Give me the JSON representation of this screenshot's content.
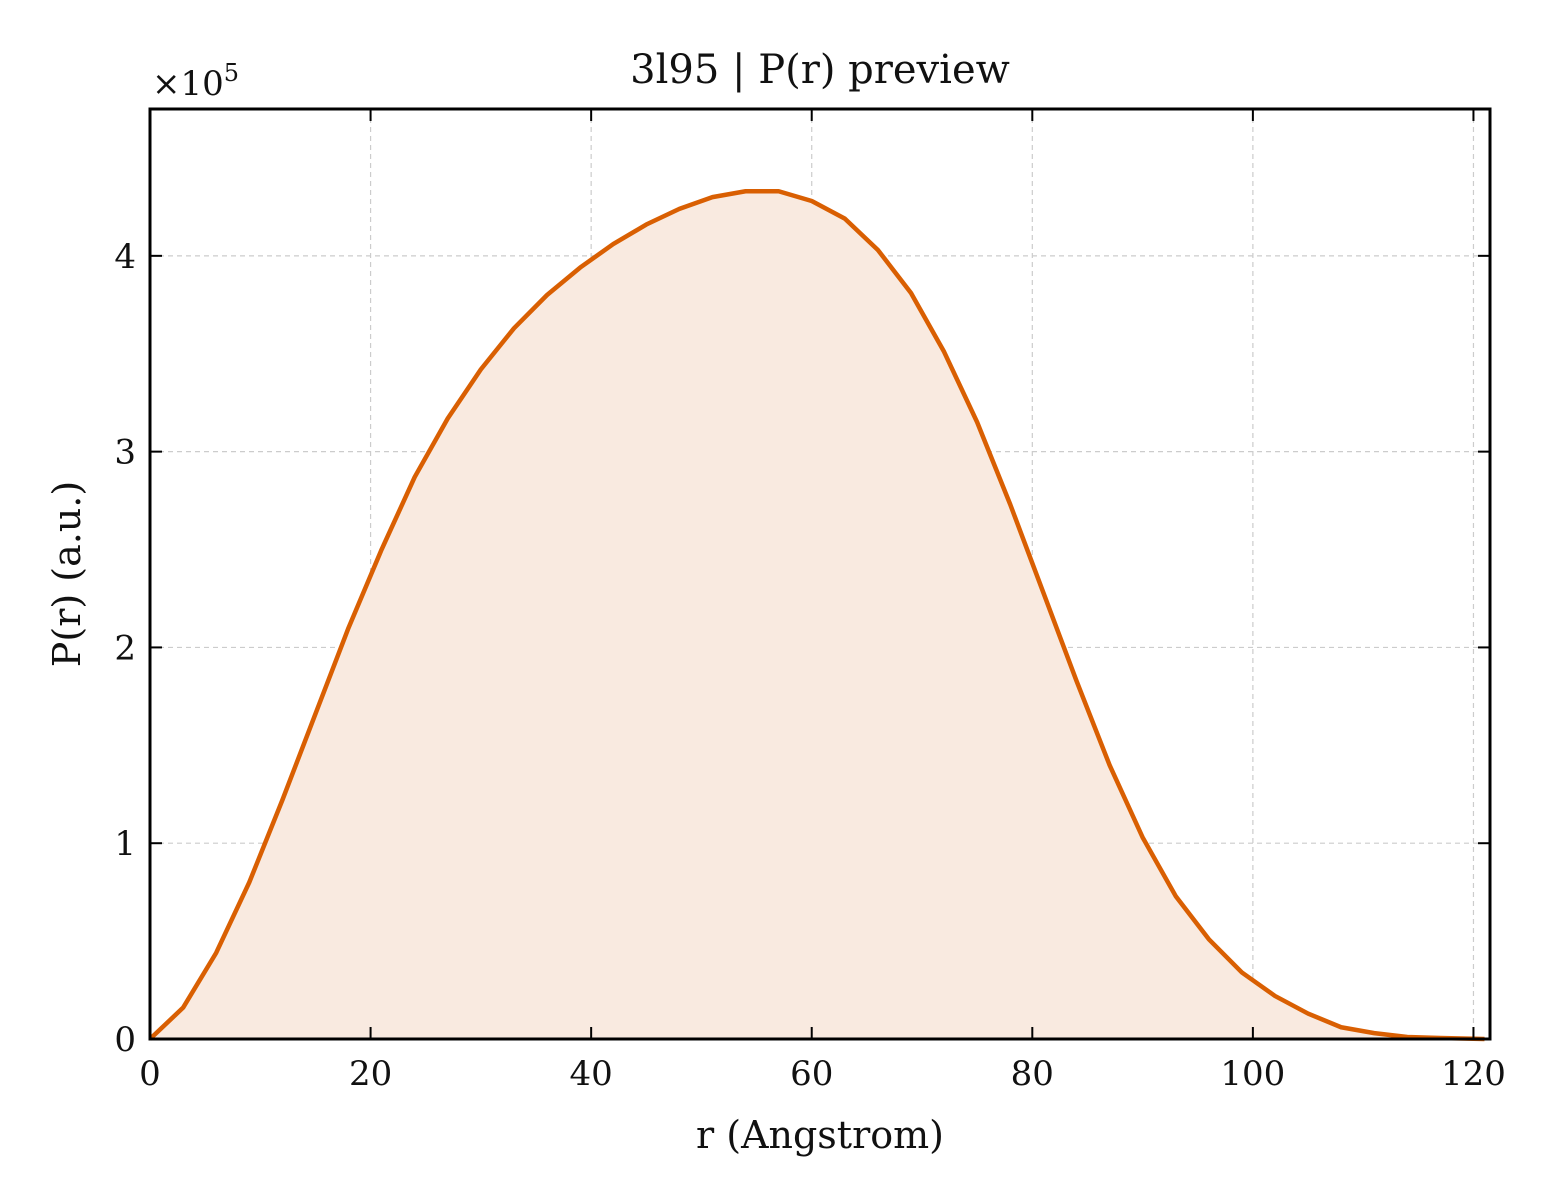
{
  "chart_data": {
    "type": "line",
    "title": "3l95 | P(r) preview",
    "xlabel": "r (Angstrom)",
    "ylabel": "P(r) (a.u.)",
    "y_multiplier": "×10",
    "y_multiplier_exp": "5",
    "xlim": [
      0,
      121.5
    ],
    "ylim": [
      0,
      4.75
    ],
    "xticks": [
      0,
      20,
      40,
      60,
      80,
      100,
      120
    ],
    "yticks": [
      0,
      1,
      2,
      3,
      4
    ],
    "grid": true,
    "fill_under": true,
    "colors": {
      "line": "#d95f02",
      "fill": "#f9eae0",
      "grid": "#cccccc"
    },
    "series": [
      {
        "x": [
          0,
          3,
          6,
          9,
          12,
          15,
          18,
          21,
          24,
          27,
          30,
          33,
          36,
          39,
          42,
          45,
          48,
          51,
          54,
          57,
          60,
          63,
          66,
          69,
          72,
          75,
          78,
          81,
          84,
          87,
          90,
          93,
          96,
          99,
          102,
          105,
          108,
          111,
          114,
          117,
          121
        ],
        "y": [
          0,
          0.16,
          0.44,
          0.8,
          1.22,
          1.66,
          2.1,
          2.5,
          2.87,
          3.17,
          3.42,
          3.63,
          3.8,
          3.94,
          4.06,
          4.16,
          4.24,
          4.3,
          4.33,
          4.33,
          4.28,
          4.19,
          4.03,
          3.81,
          3.51,
          3.15,
          2.73,
          2.28,
          1.83,
          1.4,
          1.03,
          0.73,
          0.51,
          0.34,
          0.22,
          0.13,
          0.06,
          0.03,
          0.01,
          0.005,
          0.0
        ]
      }
    ]
  }
}
